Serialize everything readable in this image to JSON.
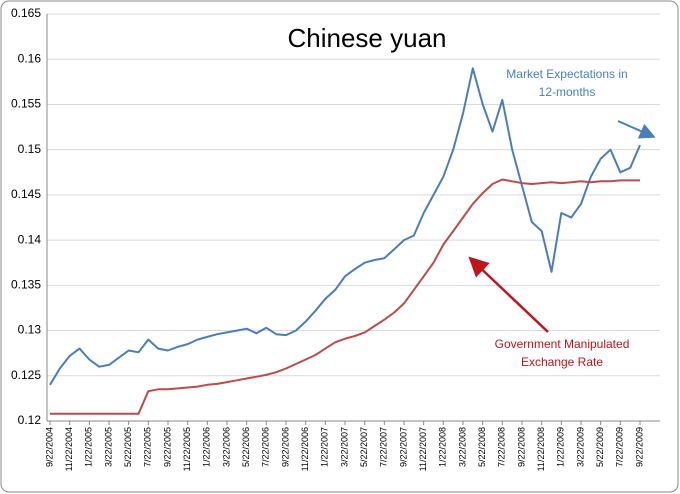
{
  "chart_data": {
    "type": "line",
    "title": "Chinese yuan",
    "categories": [
      "9/22/2004",
      null,
      "11/22/2004",
      null,
      "1/22/2005",
      null,
      "3/22/2005",
      null,
      "5/22/2005",
      null,
      "7/22/2005",
      null,
      "9/22/2005",
      null,
      "11/22/2005",
      null,
      "1/22/2006",
      null,
      "3/22/2006",
      null,
      "5/22/2006",
      null,
      "7/22/2006",
      null,
      "9/22/2006",
      null,
      "11/22/2006",
      null,
      "1/22/2007",
      null,
      "3/22/2007",
      null,
      "5/22/2007",
      null,
      "7/22/2007",
      null,
      "9/22/2007",
      null,
      "11/22/2007",
      null,
      "1/22/2008",
      null,
      "3/22/2008",
      null,
      "5/22/2008",
      null,
      "7/22/2008",
      null,
      "9/22/2008",
      null,
      "11/22/2008",
      null,
      "1/22/2009",
      null,
      "3/22/2009",
      null,
      "5/22/2009",
      null,
      "7/22/2009",
      null,
      "9/22/2009"
    ],
    "series": [
      {
        "color": "#4a7ebb",
        "values": [
          0.124,
          0.1258,
          0.1272,
          0.128,
          0.1268,
          0.126,
          0.1262,
          0.127,
          0.1278,
          0.1276,
          0.129,
          0.128,
          0.1278,
          0.1282,
          0.1285,
          0.129,
          0.1293,
          0.1296,
          0.1298,
          0.13,
          0.1302,
          0.1297,
          0.1303,
          0.1296,
          0.1295,
          0.13,
          0.131,
          0.1322,
          0.1335,
          0.1345,
          0.136,
          0.1368,
          0.1375,
          0.1378,
          0.138,
          0.139,
          0.14,
          0.1405,
          0.143,
          0.145,
          0.147,
          0.15,
          0.154,
          0.159,
          0.155,
          0.152,
          0.1555,
          0.15,
          0.146,
          0.142,
          0.141,
          0.1365,
          0.143,
          0.1425,
          0.144,
          0.147,
          0.149,
          0.15,
          0.1475,
          0.148,
          0.1505
        ]
      },
      {
        "color": "#be4b48",
        "values": [
          0.1208,
          0.1208,
          0.1208,
          0.1208,
          0.1208,
          0.1208,
          0.1208,
          0.1208,
          0.1208,
          0.1208,
          0.1233,
          0.1235,
          0.1235,
          0.1236,
          0.1237,
          0.1238,
          0.124,
          0.1241,
          0.1243,
          0.1245,
          0.1247,
          0.1249,
          0.1251,
          0.1254,
          0.1258,
          0.1263,
          0.1268,
          0.1273,
          0.128,
          0.1287,
          0.1291,
          0.1294,
          0.1298,
          0.1305,
          0.1312,
          0.132,
          0.133,
          0.1345,
          0.136,
          0.1375,
          0.1395,
          0.141,
          0.1425,
          0.144,
          0.1452,
          0.1462,
          0.1467,
          0.1465,
          0.1463,
          0.1462,
          0.1463,
          0.1464,
          0.1463,
          0.1464,
          0.1465,
          0.1464,
          0.1465,
          0.1465,
          0.1466,
          0.1466,
          0.1466
        ]
      }
    ],
    "annotations": [
      {
        "lines": [
          "Market Expectations in",
          "12-months"
        ],
        "color": "#4a7ebb"
      },
      {
        "lines": [
          "Government Manipulated",
          "Exchange Rate"
        ],
        "color": "#c0141c"
      }
    ],
    "ylim": [
      0.12,
      0.165
    ],
    "yticks": [
      0.12,
      0.125,
      0.13,
      0.135,
      0.14,
      0.145,
      0.15,
      0.155,
      0.16,
      0.165
    ],
    "grid": true
  }
}
